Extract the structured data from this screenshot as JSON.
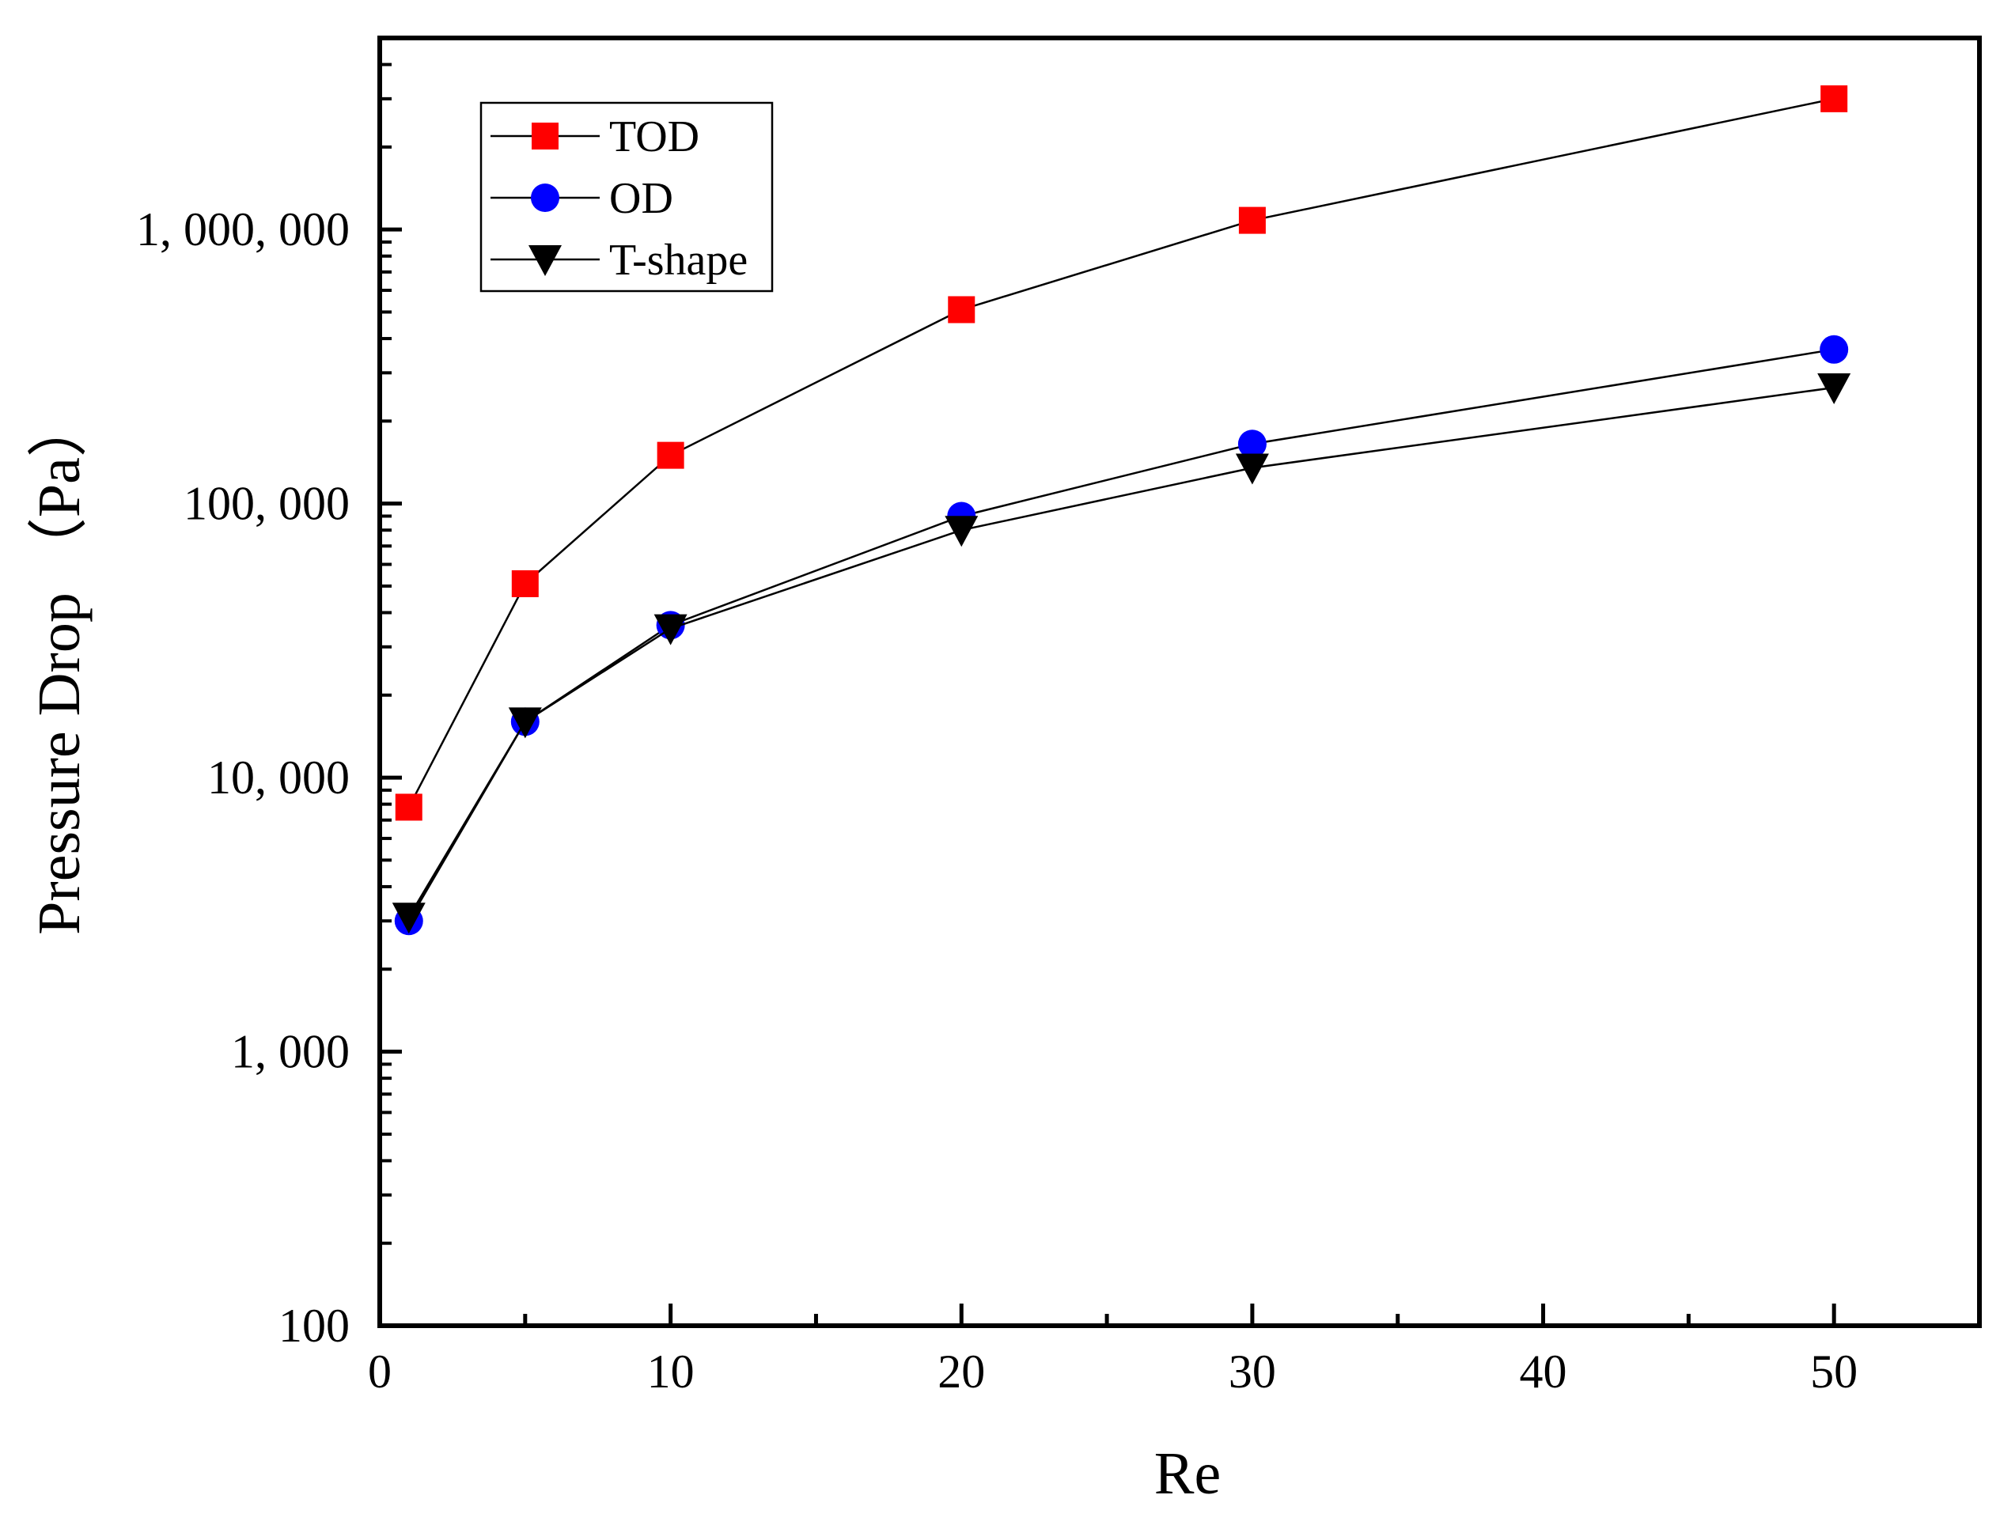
{
  "chart_data": {
    "type": "line",
    "title": "",
    "xlabel": "Re",
    "ylabel": "Pressure Drop （Pa）",
    "xscale": "linear",
    "yscale": "log",
    "xlim": [
      0,
      55
    ],
    "ylim": [
      100,
      5000000
    ],
    "x_major_ticks": [
      0,
      10,
      20,
      30,
      40,
      50
    ],
    "x_minor_ticks": [
      5,
      15,
      25,
      35,
      45
    ],
    "x_tick_labels": [
      "0",
      "10",
      "20",
      "30",
      "40",
      "50"
    ],
    "y_major_ticks": [
      100,
      1000,
      10000,
      100000,
      1000000
    ],
    "y_tick_labels": [
      "100",
      "1, 000",
      "10, 000",
      "100, 000",
      "1, 000, 000"
    ],
    "legend_position": "top-left",
    "x": [
      1,
      5,
      10,
      20,
      30,
      50
    ],
    "series": [
      {
        "name": "TOD",
        "marker": "square",
        "color": "#ff0000",
        "values": [
          7800,
          51000,
          150000,
          510000,
          1080000,
          3000000
        ]
      },
      {
        "name": "OD",
        "marker": "circle",
        "color": "#0000ff",
        "values": [
          3000,
          16000,
          36000,
          90000,
          165000,
          365000
        ]
      },
      {
        "name": "T-shape",
        "marker": "triangle-down",
        "color": "#000000",
        "values": [
          3100,
          16000,
          35000,
          80000,
          135000,
          265000
        ]
      }
    ]
  }
}
